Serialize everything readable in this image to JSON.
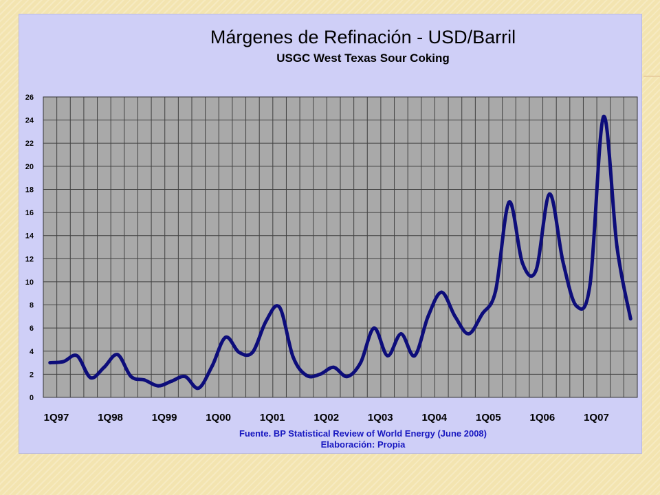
{
  "chart_data": {
    "type": "line",
    "title": "Márgenes de Refinación - USD/Barril",
    "subtitle": "USGC West Texas Sour Coking",
    "xlabel": "",
    "ylabel": "",
    "ylim": [
      0,
      26
    ],
    "yticks": [
      0,
      2,
      4,
      6,
      8,
      10,
      12,
      14,
      16,
      18,
      20,
      22,
      24,
      26
    ],
    "xlim": [
      0,
      44
    ],
    "xtick_labels": [
      {
        "label": "1Q97",
        "x": 0
      },
      {
        "label": "1Q98",
        "x": 4
      },
      {
        "label": "1Q99",
        "x": 8
      },
      {
        "label": "1Q00",
        "x": 12
      },
      {
        "label": "1Q01",
        "x": 16
      },
      {
        "label": "1Q02",
        "x": 20
      },
      {
        "label": "1Q03",
        "x": 24
      },
      {
        "label": "1Q04",
        "x": 28
      },
      {
        "label": "1Q05",
        "x": 32
      },
      {
        "label": "1Q06",
        "x": 36
      },
      {
        "label": "1Q07",
        "x": 40
      }
    ],
    "grid": true,
    "series": [
      {
        "color": "#0d0d7a",
        "points": [
          [
            0.5,
            3.0
          ],
          [
            1.5,
            3.1
          ],
          [
            2.5,
            3.6
          ],
          [
            3.5,
            1.7
          ],
          [
            4.5,
            2.6
          ],
          [
            5.5,
            3.7
          ],
          [
            6.5,
            1.8
          ],
          [
            7.5,
            1.5
          ],
          [
            8.5,
            1.0
          ],
          [
            9.5,
            1.4
          ],
          [
            10.5,
            1.8
          ],
          [
            11.5,
            0.8
          ],
          [
            12.5,
            2.7
          ],
          [
            13.5,
            5.2
          ],
          [
            14.5,
            3.9
          ],
          [
            15.5,
            3.9
          ],
          [
            16.5,
            6.6
          ],
          [
            17.5,
            7.8
          ],
          [
            18.5,
            3.5
          ],
          [
            19.5,
            1.9
          ],
          [
            20.5,
            2.0
          ],
          [
            21.5,
            2.6
          ],
          [
            22.5,
            1.8
          ],
          [
            23.5,
            3.0
          ],
          [
            24.5,
            6.0
          ],
          [
            25.5,
            3.6
          ],
          [
            26.5,
            5.5
          ],
          [
            27.5,
            3.6
          ],
          [
            28.5,
            7.0
          ],
          [
            29.5,
            9.1
          ],
          [
            30.5,
            7.0
          ],
          [
            31.5,
            5.5
          ],
          [
            32.5,
            7.2
          ],
          [
            33.5,
            9.2
          ],
          [
            34.5,
            16.9
          ],
          [
            35.5,
            11.6
          ],
          [
            36.5,
            11.0
          ],
          [
            37.5,
            17.6
          ],
          [
            38.5,
            11.7
          ],
          [
            39.5,
            7.9
          ],
          [
            40.5,
            9.8
          ],
          [
            41.5,
            24.3
          ],
          [
            42.5,
            13.0
          ],
          [
            43.5,
            6.8
          ]
        ]
      }
    ],
    "source_note": "Fuente. BP Statistical Review of World Energy (June 2008)",
    "author_note": "Elaboración: Propia"
  },
  "colors": {
    "plot_background": "#a9a9a9",
    "gridline": "#404040",
    "chart_background": "#cfcff7",
    "note_text": "#1818c0",
    "line": "#0d0d7a"
  }
}
